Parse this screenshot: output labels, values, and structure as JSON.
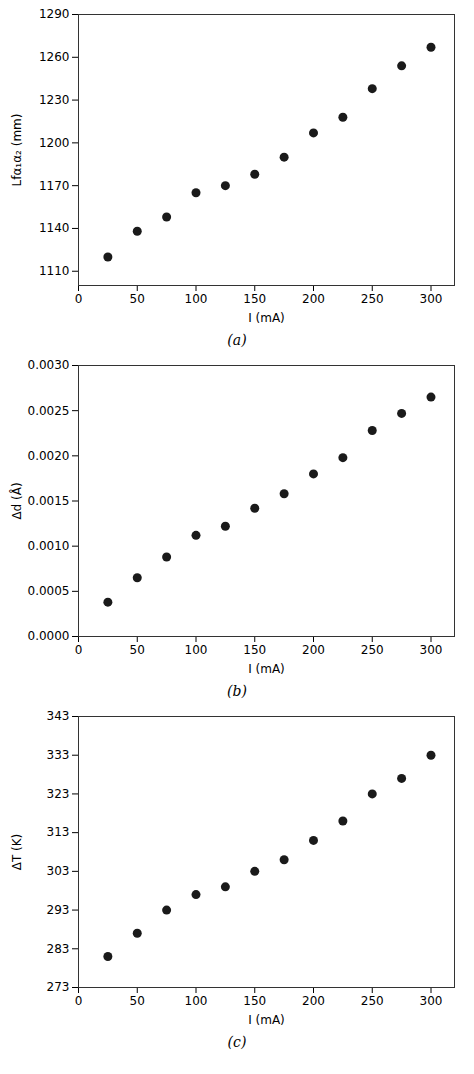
{
  "chart_data": [
    {
      "type": "scatter",
      "title": "(a)",
      "xlabel": "I (mA)",
      "ylabel": "Lfα₁α₂ (mm)",
      "color": "#1a1a1a",
      "x": [
        25,
        50,
        75,
        100,
        125,
        150,
        175,
        200,
        225,
        250,
        275,
        300
      ],
      "values": [
        1120,
        1138,
        1148,
        1165,
        1170,
        1178,
        1190,
        1207,
        1218,
        1238,
        1254,
        1267
      ],
      "xlim": [
        0,
        320
      ],
      "ylim": [
        1100,
        1290
      ],
      "xticks": [
        0,
        50,
        100,
        150,
        200,
        250,
        300
      ],
      "yticks": [
        1110,
        1140,
        1170,
        1200,
        1230,
        1260,
        1290
      ]
    },
    {
      "type": "scatter",
      "title": "(b)",
      "xlabel": "I (mA)",
      "ylabel": "Δd (Å)",
      "color": "#1a1a1a",
      "x": [
        25,
        50,
        75,
        100,
        125,
        150,
        175,
        200,
        225,
        250,
        275,
        300
      ],
      "values": [
        0.00038,
        0.00065,
        0.00088,
        0.00112,
        0.00122,
        0.00142,
        0.00158,
        0.0018,
        0.00198,
        0.00228,
        0.00247,
        0.00265
      ],
      "xlim": [
        0,
        320
      ],
      "ylim": [
        0.0,
        0.003
      ],
      "xticks": [
        0,
        50,
        100,
        150,
        200,
        250,
        300
      ],
      "yticks": [
        {
          "value": 0.0,
          "label": "0.0000"
        },
        {
          "value": 0.0005,
          "label": "0.0005"
        },
        {
          "value": 0.001,
          "label": "0.0010"
        },
        {
          "value": 0.0015,
          "label": "0.0015"
        },
        {
          "value": 0.002,
          "label": "0.0020"
        },
        {
          "value": 0.0025,
          "label": "0.0025"
        },
        {
          "value": 0.003,
          "label": "0.0030"
        }
      ]
    },
    {
      "type": "scatter",
      "title": "(c)",
      "xlabel": "I (mA)",
      "ylabel": "ΔT (K)",
      "color": "#1a1a1a",
      "x": [
        25,
        50,
        75,
        100,
        125,
        150,
        175,
        200,
        225,
        250,
        275,
        300
      ],
      "values": [
        281,
        287,
        293,
        297,
        299,
        303,
        306,
        311,
        316,
        323,
        327,
        333
      ],
      "xlim": [
        0,
        320
      ],
      "ylim": [
        273,
        343
      ],
      "xticks": [
        0,
        50,
        100,
        150,
        200,
        250,
        300
      ],
      "yticks": [
        273,
        283,
        293,
        303,
        313,
        323,
        333,
        343
      ]
    }
  ]
}
